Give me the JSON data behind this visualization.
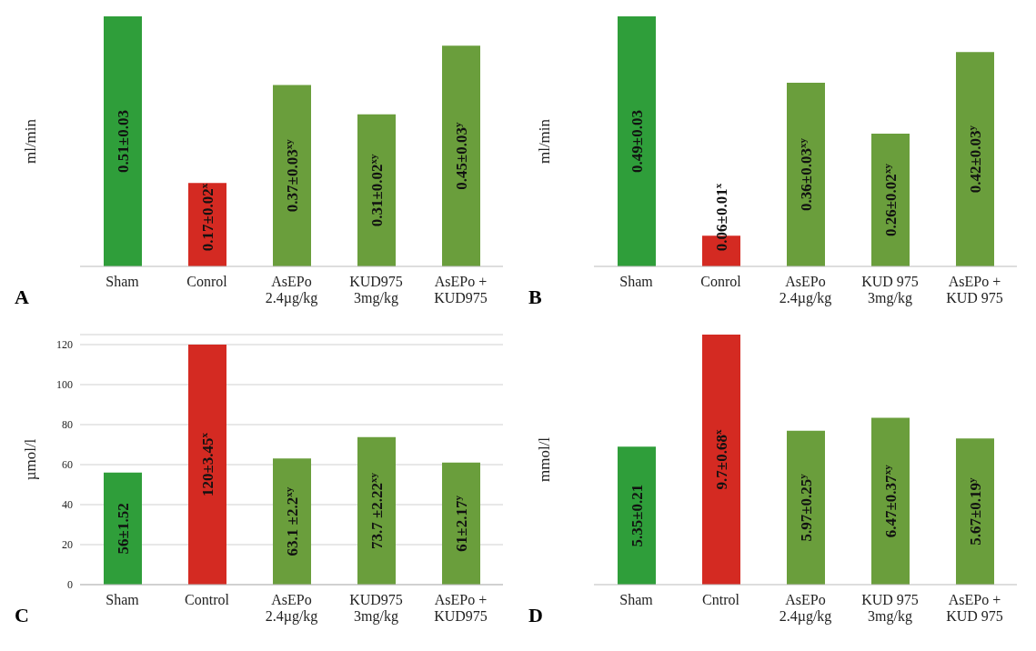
{
  "chart_data": [
    {
      "type": "bar",
      "ylabel": "ml/min",
      "annotations": [
        "A"
      ],
      "categories": [
        "Sham",
        "Conrol",
        "AsEPo\n2.4µg/kg",
        "KUD975\n3mg/kg",
        "AsEPo +\nKUD975"
      ],
      "values": [
        0.51,
        0.17,
        0.37,
        0.31,
        0.45
      ],
      "colors": [
        "#2f9e3a",
        "#d42a22",
        "#6a9e3c",
        "#6a9e3c",
        "#6a9e3c"
      ],
      "value_labels": [
        "0.51±0.03",
        "0.17±0.02$^{x}$",
        "0.37±0.03$^{xy}$",
        "0.31±0.02$^{xy}$",
        "0.45±0.03$^{y}$"
      ],
      "tick_labels": "x"
    },
    {
      "type": "bar",
      "ylabel": "ml/min",
      "annotations": [
        "B"
      ],
      "categories": [
        "Sham",
        "Conrol",
        "AsEPo\n2.4µg/kg",
        "KUD 975\n3mg/kg",
        "AsEPo +\nKUD 975"
      ],
      "values": [
        0.49,
        0.06,
        0.36,
        0.26,
        0.42
      ],
      "colors": [
        "#2f9e3a",
        "#d42a22",
        "#6a9e3c",
        "#6a9e3c",
        "#6a9e3c"
      ],
      "value_labels": [
        "0.49±0.03",
        "0.06±0.01$^{x}$",
        "0.36±0.03$^{xy}$",
        "0.26±0.02$^{xy}$",
        "0.42±0.03$^{y}$"
      ],
      "tick_labels": "x"
    },
    {
      "type": "bar",
      "ylabel": "µmol/l",
      "annotations": [
        "C"
      ],
      "categories": [
        "Sham",
        "Control",
        "AsEPo\n2.4µg/kg",
        "KUD975\n3mg/kg",
        "AsEPo +\nKUD975"
      ],
      "values": [
        56,
        120,
        63.1,
        73.7,
        61
      ],
      "colors": [
        "#2f9e3a",
        "#d42a22",
        "#6a9e3c",
        "#6a9e3c",
        "#6a9e3c"
      ],
      "value_labels": [
        "56±1.52",
        "120±3.45$^{x}$",
        "63.1 ±2.2$^{xy}$",
        "73.7 ±2.22$^{xy}$",
        "61±2.17$^{y}$"
      ],
      "ylim": [
        0,
        125
      ],
      "yticks": [
        0,
        20,
        40,
        60,
        80,
        100,
        120
      ],
      "grid": "y"
    },
    {
      "type": "bar",
      "ylabel": "mmol/l",
      "annotations": [
        "D"
      ],
      "categories": [
        "Sham",
        "Cntrol",
        "AsEPo\n2.4µg/kg",
        "KUD 975\n3mg/kg",
        "AsEPo +\nKUD 975"
      ],
      "values": [
        5.35,
        9.7,
        5.97,
        6.47,
        5.67
      ],
      "colors": [
        "#2f9e3a",
        "#d42a22",
        "#6a9e3c",
        "#6a9e3c",
        "#6a9e3c"
      ],
      "value_labels": [
        "5.35±0.21",
        "9.7±0.68$^{x}$",
        "5.97±0.25$^{y}$",
        "6.47±0.37$^{xy}$",
        "5.67±0.19$^{y}$"
      ],
      "tick_labels": "x"
    }
  ]
}
